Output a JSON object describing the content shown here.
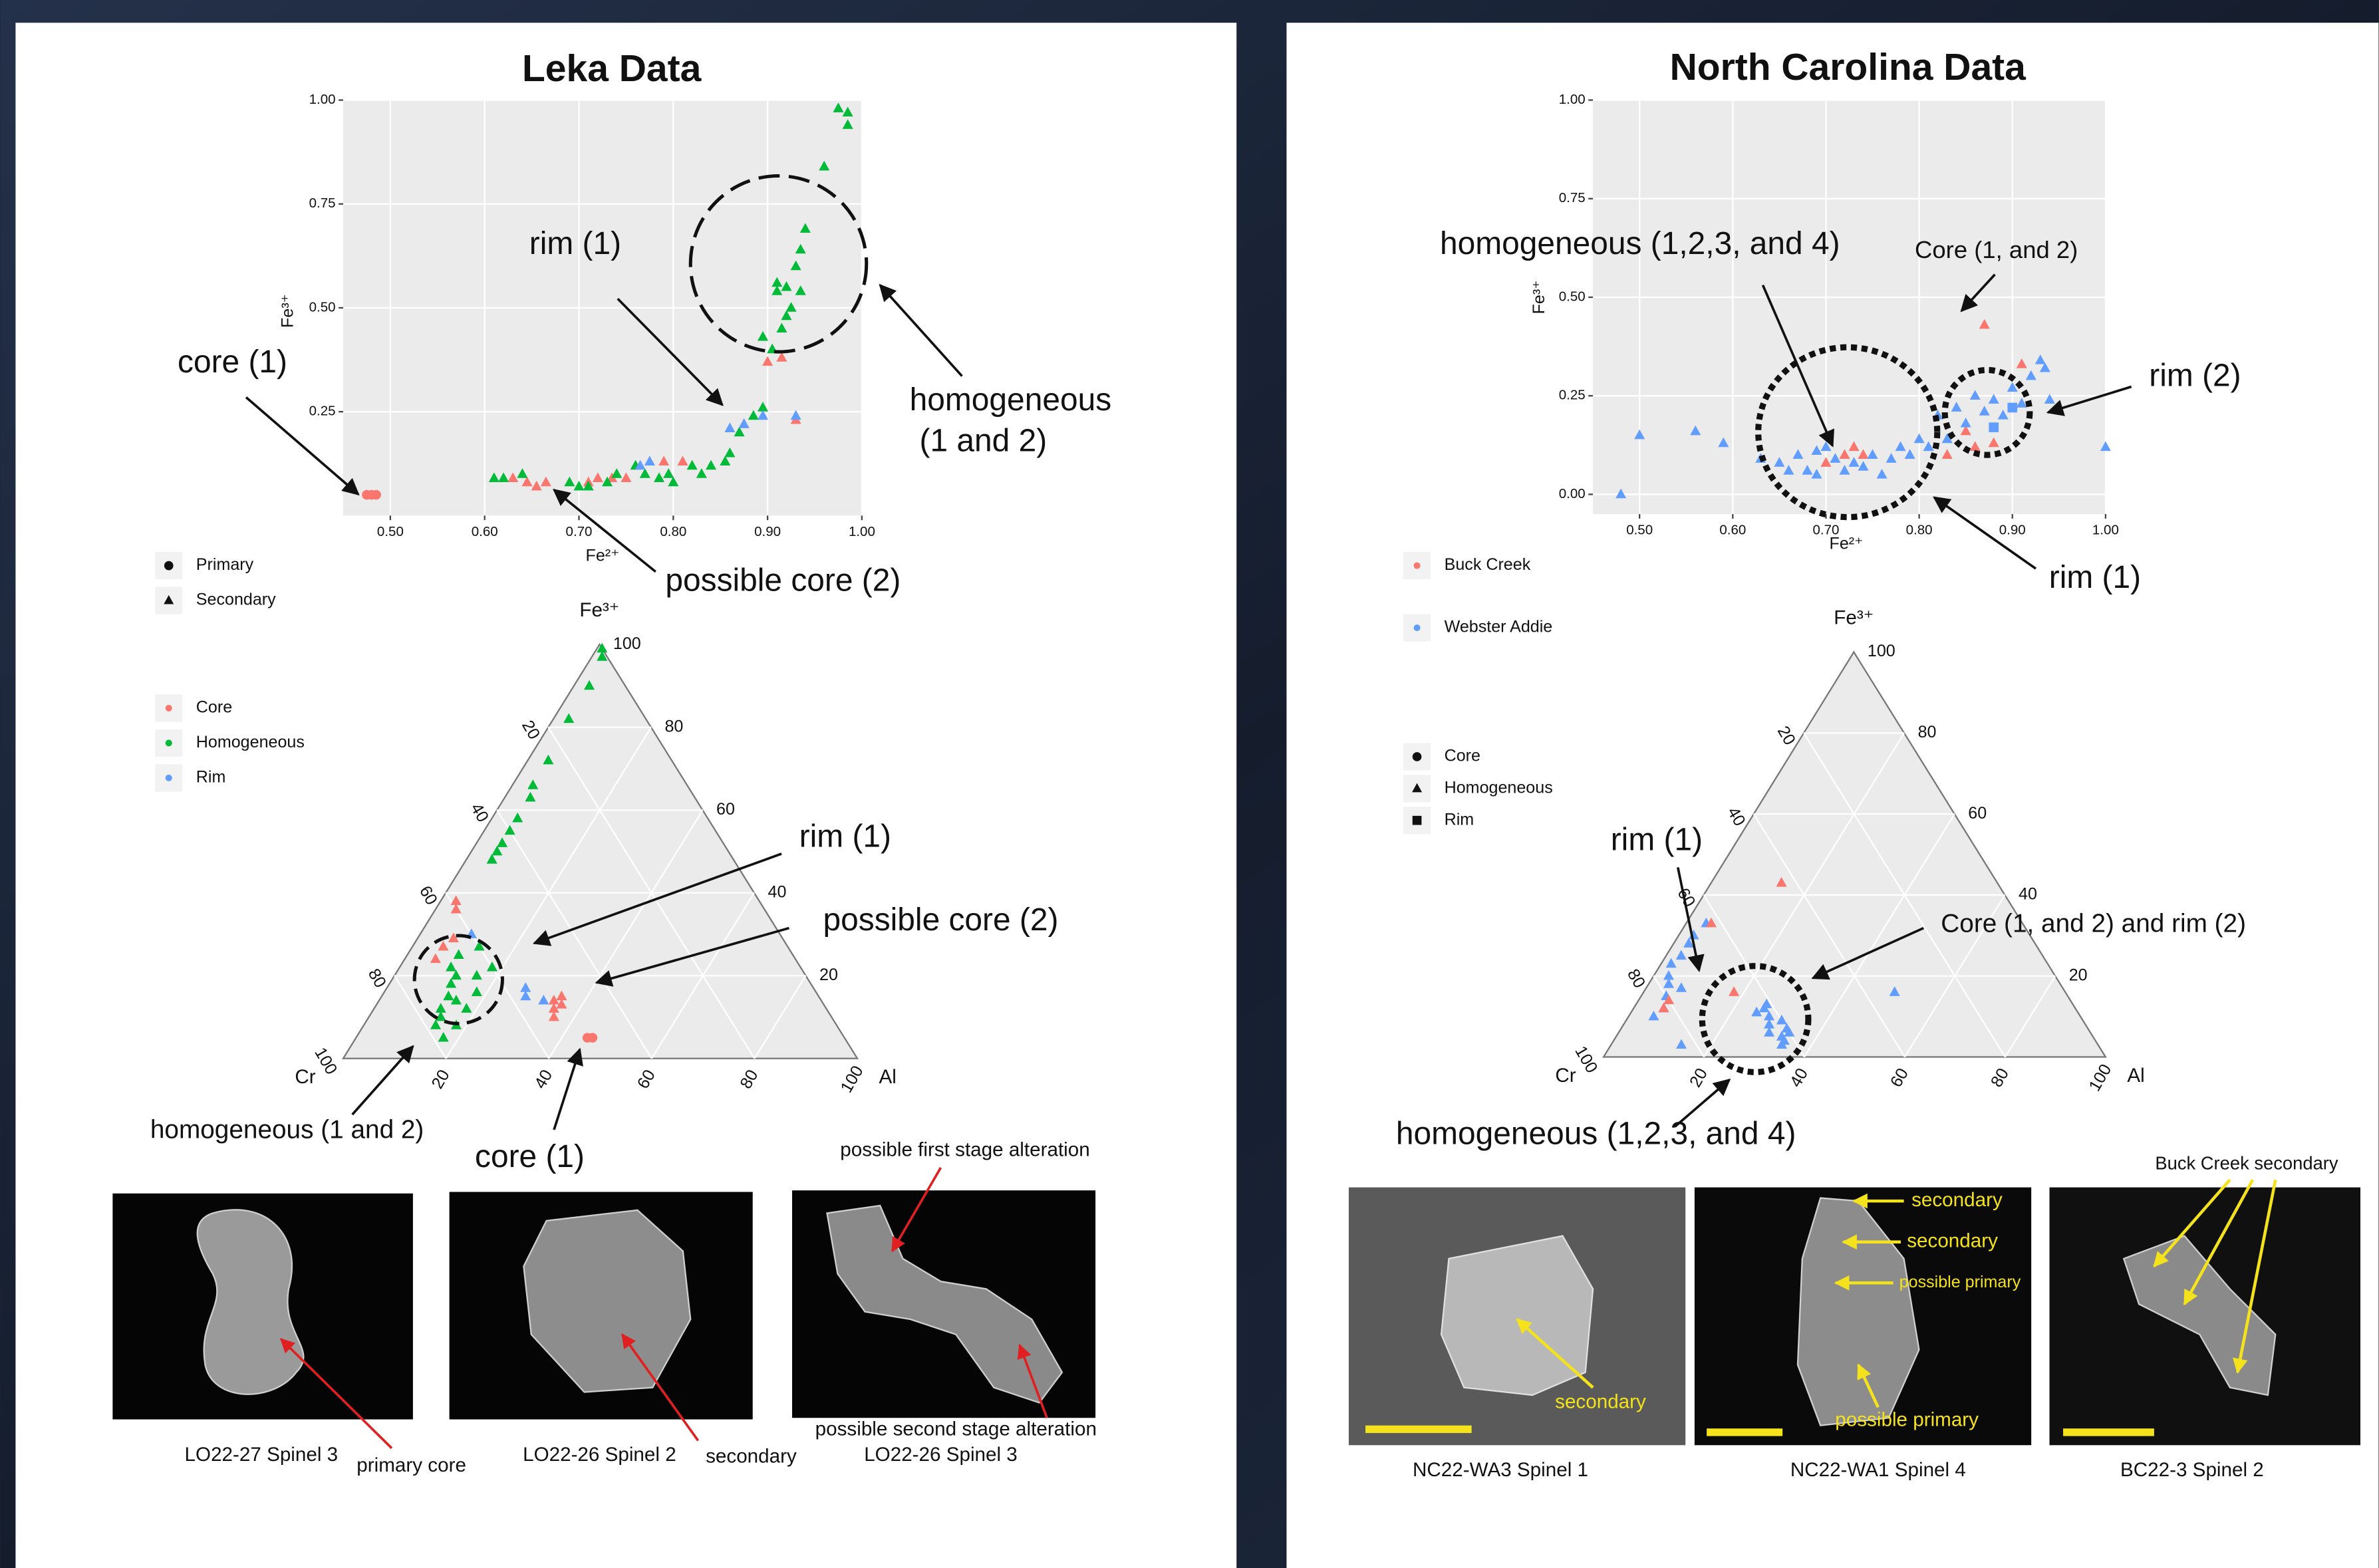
{
  "panels": [
    {
      "title": "Leka Data",
      "photos": [
        {
          "caption": "LO22-27 Spinel 3",
          "labels": [
            "primary core"
          ]
        },
        {
          "caption": "LO22-26 Spinel 2",
          "labels": [
            "secondary"
          ]
        },
        {
          "caption": "LO22-26 Spinel 3",
          "labels": [
            "possible first stage alteration",
            "possible second stage alteration"
          ]
        }
      ]
    },
    {
      "title": "North Carolina Data",
      "photos": [
        {
          "caption": "NC22-WA3 Spinel 1",
          "labels": [
            "secondary"
          ]
        },
        {
          "caption": "NC22-WA1 Spinel 4",
          "labels": [
            "secondary",
            "secondary",
            "possible primary",
            "possible primary"
          ]
        },
        {
          "caption": "BC22-3 Spinel 2",
          "labels": [
            "Buck Creek secondary"
          ]
        }
      ]
    }
  ],
  "chart_data": [
    {
      "type": "scatter",
      "x_label": "Fe²⁺",
      "y_label": "Fe³⁺",
      "xlim": [
        0.45,
        1.0
      ],
      "ylim": [
        0,
        1.0
      ],
      "xticks": [
        {
          "value": 0.5,
          "label": "0.50"
        },
        {
          "value": 0.6,
          "label": "0.60"
        },
        {
          "value": 0.7,
          "label": "0.70"
        },
        {
          "value": 0.8,
          "label": "0.80"
        },
        {
          "value": 0.9,
          "label": "0.90"
        },
        {
          "value": 1.0,
          "label": "1.00"
        }
      ],
      "yticks": [
        0.25,
        {
          "value": 0.5,
          "label": "0.50"
        },
        0.75,
        {
          "value": 1.0,
          "label": "1.00"
        }
      ],
      "grid": true,
      "legend": [
        {
          "name": "Primary",
          "shape": "circle"
        },
        {
          "name": "Secondary",
          "shape": "triangle"
        }
      ],
      "annotations": [
        "rim (1)",
        "core (1)",
        "homogeneous",
        "(1 and 2)",
        "possible core (2)"
      ],
      "series": [
        {
          "color": "#f8766d",
          "shape": "circle",
          "x": [
            0.475,
            0.48,
            0.485
          ],
          "y": [
            0.05,
            0.05,
            0.05
          ]
        },
        {
          "color": "#f8766d",
          "shape": "triangle",
          "x": [
            0.63,
            0.645,
            0.655,
            0.665,
            0.71,
            0.72,
            0.735,
            0.75,
            0.79,
            0.81,
            0.875,
            0.9,
            0.915,
            0.93
          ],
          "y": [
            0.09,
            0.08,
            0.07,
            0.08,
            0.08,
            0.09,
            0.09,
            0.09,
            0.13,
            0.13,
            0.22,
            0.37,
            0.38,
            0.23
          ]
        },
        {
          "color": "#00ba38",
          "shape": "triangle",
          "x": [
            0.61,
            0.62,
            0.64,
            0.69,
            0.7,
            0.71,
            0.73,
            0.74,
            0.76,
            0.77,
            0.785,
            0.795,
            0.8,
            0.82,
            0.83,
            0.84,
            0.855,
            0.86,
            0.87,
            0.885,
            0.895,
            0.905,
            0.915,
            0.92,
            0.91,
            0.925,
            0.935,
            0.93,
            0.935,
            0.94,
            0.92,
            0.96,
            0.975,
            0.985,
            0.985,
            0.895,
            0.91
          ],
          "y": [
            0.09,
            0.09,
            0.1,
            0.08,
            0.07,
            0.07,
            0.08,
            0.1,
            0.12,
            0.1,
            0.09,
            0.1,
            0.08,
            0.12,
            0.1,
            0.12,
            0.13,
            0.15,
            0.2,
            0.24,
            0.26,
            0.4,
            0.45,
            0.48,
            0.54,
            0.5,
            0.54,
            0.6,
            0.64,
            0.69,
            0.55,
            0.84,
            0.98,
            0.97,
            0.94,
            0.43,
            0.56
          ]
        },
        {
          "color": "#619cff",
          "shape": "triangle",
          "x": [
            0.765,
            0.775,
            0.86,
            0.875,
            0.93,
            0.895
          ],
          "y": [
            0.12,
            0.13,
            0.21,
            0.22,
            0.24,
            0.24
          ]
        }
      ]
    },
    {
      "type": "scatter",
      "x_label": "Fe²⁺",
      "y_label": "Fe³⁺",
      "xlim": [
        0.45,
        1.0
      ],
      "ylim": [
        -0.05,
        1.0
      ],
      "xticks": [
        {
          "value": 0.5,
          "label": "0.50"
        },
        {
          "value": 0.6,
          "label": "0.60"
        },
        {
          "value": 0.7,
          "label": "0.70"
        },
        {
          "value": 0.8,
          "label": "0.80"
        },
        {
          "value": 0.9,
          "label": "0.90"
        },
        {
          "value": 1.0,
          "label": "1.00"
        }
      ],
      "yticks": [
        {
          "value": 0,
          "label": "0.00"
        },
        0.25,
        {
          "value": 0.5,
          "label": "0.50"
        },
        0.75,
        {
          "value": 1.0,
          "label": "1.00"
        }
      ],
      "grid": true,
      "legend": [
        {
          "name": "Buck Creek",
          "color": "#f8766d"
        },
        {
          "name": "Webster Addie",
          "color": "#619cff"
        }
      ],
      "annotations": [
        "homogeneous (1,2,3, and 4)",
        "Core (1, and 2)",
        "rim (2)",
        "rim (1)"
      ],
      "series": [
        {
          "color": "#f8766d",
          "shape": "triangle",
          "x": [
            0.87,
            0.91,
            0.83,
            0.85,
            0.86,
            0.88,
            0.72,
            0.73,
            0.7,
            0.74
          ],
          "y": [
            0.43,
            0.33,
            0.1,
            0.16,
            0.12,
            0.13,
            0.1,
            0.12,
            0.08,
            0.1
          ]
        },
        {
          "color": "#619cff",
          "shape": "triangle",
          "x": [
            0.48,
            0.5,
            0.56,
            0.59,
            0.63,
            0.65,
            0.67,
            0.68,
            0.69,
            0.7,
            0.71,
            0.72,
            0.73,
            0.74,
            0.75,
            0.76,
            0.77,
            0.78,
            0.79,
            0.8,
            0.81,
            0.82,
            0.83,
            0.84,
            0.85,
            0.86,
            0.87,
            0.88,
            0.89,
            0.9,
            0.91,
            0.92,
            0.93,
            0.935,
            0.94,
            1.0,
            0.66,
            0.69
          ],
          "y": [
            0.0,
            0.15,
            0.16,
            0.13,
            0.09,
            0.08,
            0.1,
            0.06,
            0.11,
            0.12,
            0.09,
            0.06,
            0.08,
            0.07,
            0.1,
            0.05,
            0.09,
            0.12,
            0.1,
            0.14,
            0.12,
            0.2,
            0.14,
            0.22,
            0.18,
            0.25,
            0.21,
            0.24,
            0.2,
            0.27,
            0.23,
            0.3,
            0.34,
            0.32,
            0.24,
            0.12,
            0.06,
            0.05
          ]
        },
        {
          "color": "#619cff",
          "shape": "square",
          "x": [
            0.88,
            0.9
          ],
          "y": [
            0.17,
            0.22
          ]
        }
      ]
    },
    {
      "type": "ternary",
      "top_label": "Fe³⁺",
      "left_label": "Cr",
      "right_label": "Al",
      "ticks": [
        20,
        40,
        60,
        80,
        100
      ],
      "legend": [
        {
          "name": "Core",
          "color": "#f8766d"
        },
        {
          "name": "Homogeneous",
          "color": "#00ba38"
        },
        {
          "name": "Rim",
          "color": "#619cff"
        }
      ],
      "annotations": [
        "rim (1)",
        "possible core (2)",
        "homogeneous (1 and 2)",
        "core (1)"
      ],
      "series": [
        {
          "color": "#f8766d",
          "shape": "circle",
          "fe": [
            5,
            5
          ],
          "cr": [
            50,
            49
          ],
          "al": [
            45,
            46
          ]
        },
        {
          "color": "#f8766d",
          "shape": "triangle",
          "fe": [
            27,
            29,
            24,
            38,
            36,
            14,
            13,
            12,
            10,
            15
          ],
          "cr": [
            67,
            64,
            70,
            59,
            60,
            52,
            51,
            53,
            54,
            50
          ],
          "al": [
            6,
            7,
            6,
            3,
            4,
            34,
            36,
            35,
            36,
            35
          ]
        },
        {
          "color": "#00ba38",
          "shape": "triangle",
          "fe": [
            99,
            97,
            90,
            82,
            72,
            66,
            63,
            58,
            55,
            52,
            50,
            48,
            25,
            22,
            20,
            18,
            15,
            12,
            10,
            8,
            20,
            16,
            12,
            22,
            8,
            5,
            14,
            27
          ],
          "cr": [
            0,
            1,
            7,
            15,
            24,
            30,
            32,
            37,
            40,
            43,
            45,
            47,
            65,
            68,
            68,
            70,
            72,
            75,
            76,
            78,
            64,
            66,
            70,
            60,
            74,
            78,
            71,
            60
          ],
          "al": [
            1,
            2,
            3,
            3,
            4,
            4,
            5,
            5,
            5,
            5,
            5,
            5,
            10,
            10,
            12,
            12,
            13,
            13,
            14,
            14,
            16,
            18,
            18,
            18,
            18,
            17,
            15,
            13
          ]
        },
        {
          "color": "#619cff",
          "shape": "triangle",
          "fe": [
            17,
            15,
            30,
            14
          ],
          "cr": [
            56,
            57,
            60,
            54
          ],
          "al": [
            27,
            28,
            10,
            32
          ]
        }
      ]
    },
    {
      "type": "ternary",
      "top_label": "Fe³⁺",
      "left_label": "Cr",
      "right_label": "Al",
      "ticks": [
        20,
        40,
        60,
        80,
        100
      ],
      "legend": [
        {
          "name": "Core",
          "shape": "circle"
        },
        {
          "name": "Homogeneous",
          "shape": "triangle"
        },
        {
          "name": "Rim",
          "shape": "square"
        }
      ],
      "annotations": [
        "rim (1)",
        "Core (1, and 2) and rim (2)",
        "homogeneous (1,2,3, and 4)"
      ],
      "series": [
        {
          "color": "#619cff",
          "shape": "triangle",
          "fe": [
            12,
            10,
            8,
            6,
            5,
            4,
            9,
            7,
            11,
            13,
            3,
            6,
            23,
            20,
            18,
            25,
            15,
            12,
            10,
            30,
            28,
            17,
            33,
            16,
            3
          ],
          "cr": [
            62,
            62,
            63,
            64,
            62,
            62,
            60,
            60,
            64,
            61,
            63,
            60,
            75,
            77,
            78,
            72,
            80,
            82,
            85,
            67,
            69,
            76,
            63,
            34,
            83
          ],
          "al": [
            26,
            28,
            29,
            30,
            33,
            34,
            31,
            33,
            25,
            26,
            34,
            34,
            2,
            3,
            4,
            3,
            5,
            6,
            5,
            3,
            3,
            7,
            4,
            50,
            14
          ]
        },
        {
          "color": "#f8766d",
          "shape": "triangle",
          "fe": [
            43,
            16,
            14,
            12,
            33
          ],
          "cr": [
            43,
            66,
            80,
            82,
            62
          ],
          "al": [
            14,
            18,
            6,
            6,
            5
          ]
        }
      ]
    }
  ]
}
